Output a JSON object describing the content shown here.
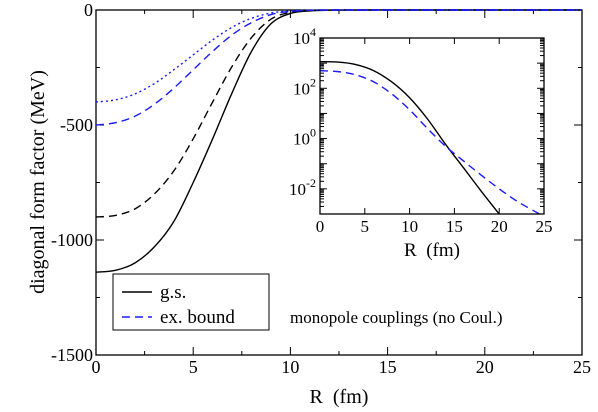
{
  "chart_data": [
    {
      "type": "line",
      "xlabel": "R  (fm)",
      "ylabel": "diagonal form factor  (MeV)",
      "xlim": [
        0,
        25
      ],
      "ylim": [
        -1500,
        0
      ],
      "x_ticks": [
        "0",
        "5",
        "10",
        "15",
        "20",
        "25"
      ],
      "y_ticks": [
        "0",
        "-500",
        "-1000",
        "-1500"
      ],
      "grid": false,
      "legend_placement": "bottom-left",
      "legend": [
        {
          "label": "g.s.",
          "style": "solid",
          "color": "#000000"
        },
        {
          "label": "ex. bound",
          "style": "dashed",
          "color": "#1a1aff"
        }
      ],
      "annotation": "monopole couplings (no Coul.)",
      "series": [
        {
          "name": "g.s.",
          "style": "solid",
          "color": "#000000",
          "x": [
            0,
            1,
            2,
            3,
            4,
            5,
            6,
            7,
            8,
            9,
            10,
            11,
            12,
            14,
            16,
            18,
            20,
            25
          ],
          "y": [
            -1140,
            -1132,
            -1100,
            -1030,
            -920,
            -750,
            -560,
            -360,
            -180,
            -60,
            -15,
            -4,
            -1,
            0,
            0,
            0,
            0,
            0
          ]
        },
        {
          "name": "g.s. (no legend, black dashed)",
          "style": "dashed",
          "color": "#000000",
          "x": [
            0,
            1,
            2,
            3,
            4,
            5,
            6,
            7,
            8,
            9,
            10,
            11,
            12,
            14,
            16,
            18,
            20,
            25
          ],
          "y": [
            -900,
            -893,
            -865,
            -800,
            -700,
            -560,
            -400,
            -245,
            -120,
            -40,
            -10,
            -2,
            0,
            0,
            0,
            0,
            0,
            0
          ]
        },
        {
          "name": "ex. bound",
          "style": "dashed",
          "color": "#1a1aff",
          "x": [
            0,
            1,
            2,
            3,
            4,
            5,
            6,
            7,
            8,
            9,
            10,
            11,
            12,
            14,
            16,
            18,
            20,
            25
          ],
          "y": [
            -500,
            -490,
            -462,
            -410,
            -340,
            -260,
            -180,
            -108,
            -55,
            -20,
            -6,
            -1.5,
            0,
            0,
            0,
            0,
            0,
            0
          ]
        },
        {
          "name": "ex. bound (no legend, blue dotted)",
          "style": "dotted",
          "color": "#1a1aff",
          "x": [
            0,
            1,
            2,
            3,
            4,
            5,
            6,
            7,
            8,
            9,
            10,
            11,
            12,
            14,
            16,
            18,
            20,
            25
          ],
          "y": [
            -400,
            -391,
            -365,
            -320,
            -260,
            -195,
            -130,
            -75,
            -36,
            -13,
            -4,
            -1,
            0,
            0,
            0,
            0,
            0,
            0
          ]
        }
      ]
    },
    {
      "type": "line",
      "inset": true,
      "xlabel": "R  (fm)",
      "ylabel": "",
      "xlim": [
        0,
        25
      ],
      "ylim": [
        0.001,
        10000
      ],
      "yscale": "log",
      "x_ticks": [
        "0",
        "5",
        "10",
        "15",
        "20",
        "25"
      ],
      "y_ticks": [
        {
          "value": 10000,
          "base": "10",
          "exp": "4"
        },
        {
          "value": 100,
          "base": "10",
          "exp": "2"
        },
        {
          "value": 1,
          "base": "10",
          "exp": "0"
        },
        {
          "value": 0.01,
          "base": "10",
          "exp": "-2"
        }
      ],
      "grid": false,
      "series": [
        {
          "name": "g.s.",
          "style": "solid",
          "color": "#000000",
          "x": [
            0,
            2,
            4,
            6,
            8,
            10,
            12,
            14,
            16,
            18,
            20
          ],
          "y": [
            1140,
            1100,
            880,
            500,
            180,
            42,
            6,
            0.6,
            0.07,
            0.008,
            0.001
          ]
        },
        {
          "name": "ex. bound",
          "style": "dashed",
          "color": "#1a1aff",
          "x": [
            0,
            2,
            4,
            6,
            8,
            10,
            12,
            14,
            16,
            18,
            20,
            22,
            24.5
          ],
          "y": [
            500,
            460,
            340,
            180,
            60,
            14,
            2.5,
            0.5,
            0.13,
            0.035,
            0.01,
            0.0032,
            0.001
          ]
        }
      ]
    }
  ]
}
